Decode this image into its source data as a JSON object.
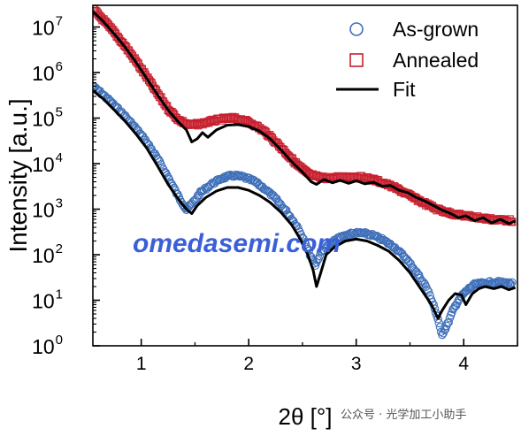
{
  "chart_data": {
    "type": "scatter",
    "xlabel": "2θ [°]",
    "ylabel": "Intensity [a.u.]",
    "xlim": [
      0.55,
      4.5
    ],
    "ylim": [
      1,
      30000000
    ],
    "yscale": "log",
    "x_ticks": [
      "1",
      "2",
      "3",
      "4"
    ],
    "y_ticks": [
      {
        "base": "10",
        "exp": "0"
      },
      {
        "base": "10",
        "exp": "1"
      },
      {
        "base": "10",
        "exp": "2"
      },
      {
        "base": "10",
        "exp": "3"
      },
      {
        "base": "10",
        "exp": "4"
      },
      {
        "base": "10",
        "exp": "5"
      },
      {
        "base": "10",
        "exp": "6"
      },
      {
        "base": "10",
        "exp": "7"
      }
    ],
    "grid": false,
    "legend_position": "top-right",
    "legend": [
      "As-grown",
      "Annealed",
      "Fit"
    ],
    "series": [
      {
        "name": "As-grown",
        "marker": "circle",
        "color": "#3e6fb8",
        "points": [
          [
            0.55,
            500000
          ],
          [
            0.65,
            320000
          ],
          [
            0.75,
            190000
          ],
          [
            0.85,
            110000
          ],
          [
            0.95,
            60000
          ],
          [
            1.05,
            30000
          ],
          [
            1.15,
            13000
          ],
          [
            1.25,
            5000
          ],
          [
            1.35,
            1800
          ],
          [
            1.42,
            1000
          ],
          [
            1.47,
            1300
          ],
          [
            1.55,
            2300
          ],
          [
            1.65,
            3500
          ],
          [
            1.75,
            4800
          ],
          [
            1.85,
            5500
          ],
          [
            1.95,
            5100
          ],
          [
            2.05,
            4100
          ],
          [
            2.15,
            2800
          ],
          [
            2.25,
            1700
          ],
          [
            2.35,
            900
          ],
          [
            2.45,
            420
          ],
          [
            2.52,
            200
          ],
          [
            2.57,
            100
          ],
          [
            2.62,
            60
          ],
          [
            2.67,
            110
          ],
          [
            2.75,
            170
          ],
          [
            2.85,
            240
          ],
          [
            2.95,
            290
          ],
          [
            3.05,
            300
          ],
          [
            3.15,
            270
          ],
          [
            3.25,
            210
          ],
          [
            3.35,
            150
          ],
          [
            3.45,
            90
          ],
          [
            3.55,
            45
          ],
          [
            3.65,
            20
          ],
          [
            3.72,
            8
          ],
          [
            3.77,
            3
          ],
          [
            3.8,
            1.8
          ],
          [
            3.85,
            3
          ],
          [
            3.9,
            6
          ],
          [
            3.95,
            10
          ],
          [
            4.0,
            14
          ],
          [
            4.05,
            18
          ],
          [
            4.1,
            22
          ],
          [
            4.2,
            24
          ],
          [
            4.3,
            25
          ],
          [
            4.4,
            24
          ],
          [
            4.45,
            23
          ]
        ]
      },
      {
        "name": "Annealed",
        "marker": "square",
        "color": "#c8202e",
        "points": [
          [
            0.55,
            25000000
          ],
          [
            0.65,
            14000000
          ],
          [
            0.75,
            7500000
          ],
          [
            0.85,
            3800000
          ],
          [
            0.95,
            1800000
          ],
          [
            1.05,
            800000
          ],
          [
            1.15,
            350000
          ],
          [
            1.25,
            160000
          ],
          [
            1.35,
            90000
          ],
          [
            1.45,
            70000
          ],
          [
            1.55,
            75000
          ],
          [
            1.65,
            85000
          ],
          [
            1.75,
            95000
          ],
          [
            1.85,
            100000
          ],
          [
            1.95,
            90000
          ],
          [
            2.05,
            72000
          ],
          [
            2.15,
            50000
          ],
          [
            2.25,
            30000
          ],
          [
            2.35,
            17000
          ],
          [
            2.45,
            9500
          ],
          [
            2.55,
            6000
          ],
          [
            2.65,
            5000
          ],
          [
            2.75,
            4800
          ],
          [
            2.85,
            5000
          ],
          [
            2.95,
            5200
          ],
          [
            3.05,
            5000
          ],
          [
            3.15,
            4500
          ],
          [
            3.25,
            3800
          ],
          [
            3.35,
            3000
          ],
          [
            3.45,
            2300
          ],
          [
            3.55,
            1700
          ],
          [
            3.65,
            1300
          ],
          [
            3.75,
            1000
          ],
          [
            3.85,
            850
          ],
          [
            3.95,
            750
          ],
          [
            4.05,
            700
          ],
          [
            4.15,
            650
          ],
          [
            4.25,
            600
          ],
          [
            4.35,
            580
          ],
          [
            4.45,
            560
          ]
        ]
      },
      {
        "name": "Fit",
        "marker": "line",
        "color": "#000000",
        "points": [
          [
            0.55,
            22000000
          ],
          [
            0.65,
            13000000
          ],
          [
            0.75,
            7000000
          ],
          [
            0.85,
            3600000
          ],
          [
            0.95,
            1700000
          ],
          [
            1.05,
            750000
          ],
          [
            1.15,
            330000
          ],
          [
            1.25,
            150000
          ],
          [
            1.35,
            80000
          ],
          [
            1.42,
            55000
          ],
          [
            1.47,
            30000
          ],
          [
            1.52,
            35000
          ],
          [
            1.57,
            48000
          ],
          [
            1.62,
            38000
          ],
          [
            1.7,
            55000
          ],
          [
            1.8,
            70000
          ],
          [
            1.9,
            72000
          ],
          [
            2.0,
            65000
          ],
          [
            2.1,
            52000
          ],
          [
            2.2,
            35000
          ],
          [
            2.3,
            20000
          ],
          [
            2.4,
            11000
          ],
          [
            2.5,
            6500
          ],
          [
            2.58,
            4000
          ],
          [
            2.63,
            3500
          ],
          [
            2.7,
            4500
          ],
          [
            2.78,
            3800
          ],
          [
            2.85,
            4300
          ],
          [
            2.93,
            3700
          ],
          [
            3.0,
            4200
          ],
          [
            3.08,
            3600
          ],
          [
            3.16,
            3900
          ],
          [
            3.24,
            3200
          ],
          [
            3.32,
            3300
          ],
          [
            3.4,
            2600
          ],
          [
            3.48,
            2300
          ],
          [
            3.56,
            1800
          ],
          [
            3.64,
            1500
          ],
          [
            3.72,
            1200
          ],
          [
            3.8,
            950
          ],
          [
            3.88,
            800
          ],
          [
            3.95,
            650
          ],
          [
            4.02,
            720
          ],
          [
            4.1,
            560
          ],
          [
            4.18,
            650
          ],
          [
            4.26,
            500
          ],
          [
            4.34,
            600
          ],
          [
            4.42,
            480
          ],
          [
            4.48,
            550
          ]
        ]
      },
      {
        "name": "",
        "marker": "line",
        "color": "#000000",
        "points": [
          [
            0.55,
            400000
          ],
          [
            0.65,
            260000
          ],
          [
            0.75,
            150000
          ],
          [
            0.85,
            85000
          ],
          [
            0.95,
            45000
          ],
          [
            1.05,
            22000
          ],
          [
            1.15,
            9000
          ],
          [
            1.25,
            3500
          ],
          [
            1.35,
            1600
          ],
          [
            1.42,
            1000
          ],
          [
            1.47,
            800
          ],
          [
            1.52,
            1200
          ],
          [
            1.6,
            1800
          ],
          [
            1.7,
            2500
          ],
          [
            1.8,
            3000
          ],
          [
            1.9,
            3000
          ],
          [
            2.0,
            2600
          ],
          [
            2.1,
            2000
          ],
          [
            2.2,
            1400
          ],
          [
            2.3,
            850
          ],
          [
            2.4,
            450
          ],
          [
            2.48,
            220
          ],
          [
            2.55,
            100
          ],
          [
            2.6,
            45
          ],
          [
            2.63,
            20
          ],
          [
            2.67,
            40
          ],
          [
            2.72,
            100
          ],
          [
            2.8,
            150
          ],
          [
            2.9,
            200
          ],
          [
            3.0,
            220
          ],
          [
            3.1,
            200
          ],
          [
            3.2,
            160
          ],
          [
            3.3,
            120
          ],
          [
            3.4,
            75
          ],
          [
            3.5,
            40
          ],
          [
            3.6,
            18
          ],
          [
            3.7,
            8
          ],
          [
            3.76,
            4
          ],
          [
            3.8,
            6
          ],
          [
            3.86,
            10
          ],
          [
            3.92,
            14
          ],
          [
            3.98,
            13
          ],
          [
            4.02,
            8
          ],
          [
            4.08,
            14
          ],
          [
            4.14,
            18
          ],
          [
            4.2,
            20
          ],
          [
            4.28,
            18
          ],
          [
            4.35,
            20
          ],
          [
            4.42,
            17
          ],
          [
            4.48,
            19
          ]
        ]
      }
    ]
  },
  "watermark": {
    "text": "omedasemi.com",
    "color": "#3a5fd9"
  },
  "footer": {
    "text": "公众号 · 光学加工小助手"
  }
}
